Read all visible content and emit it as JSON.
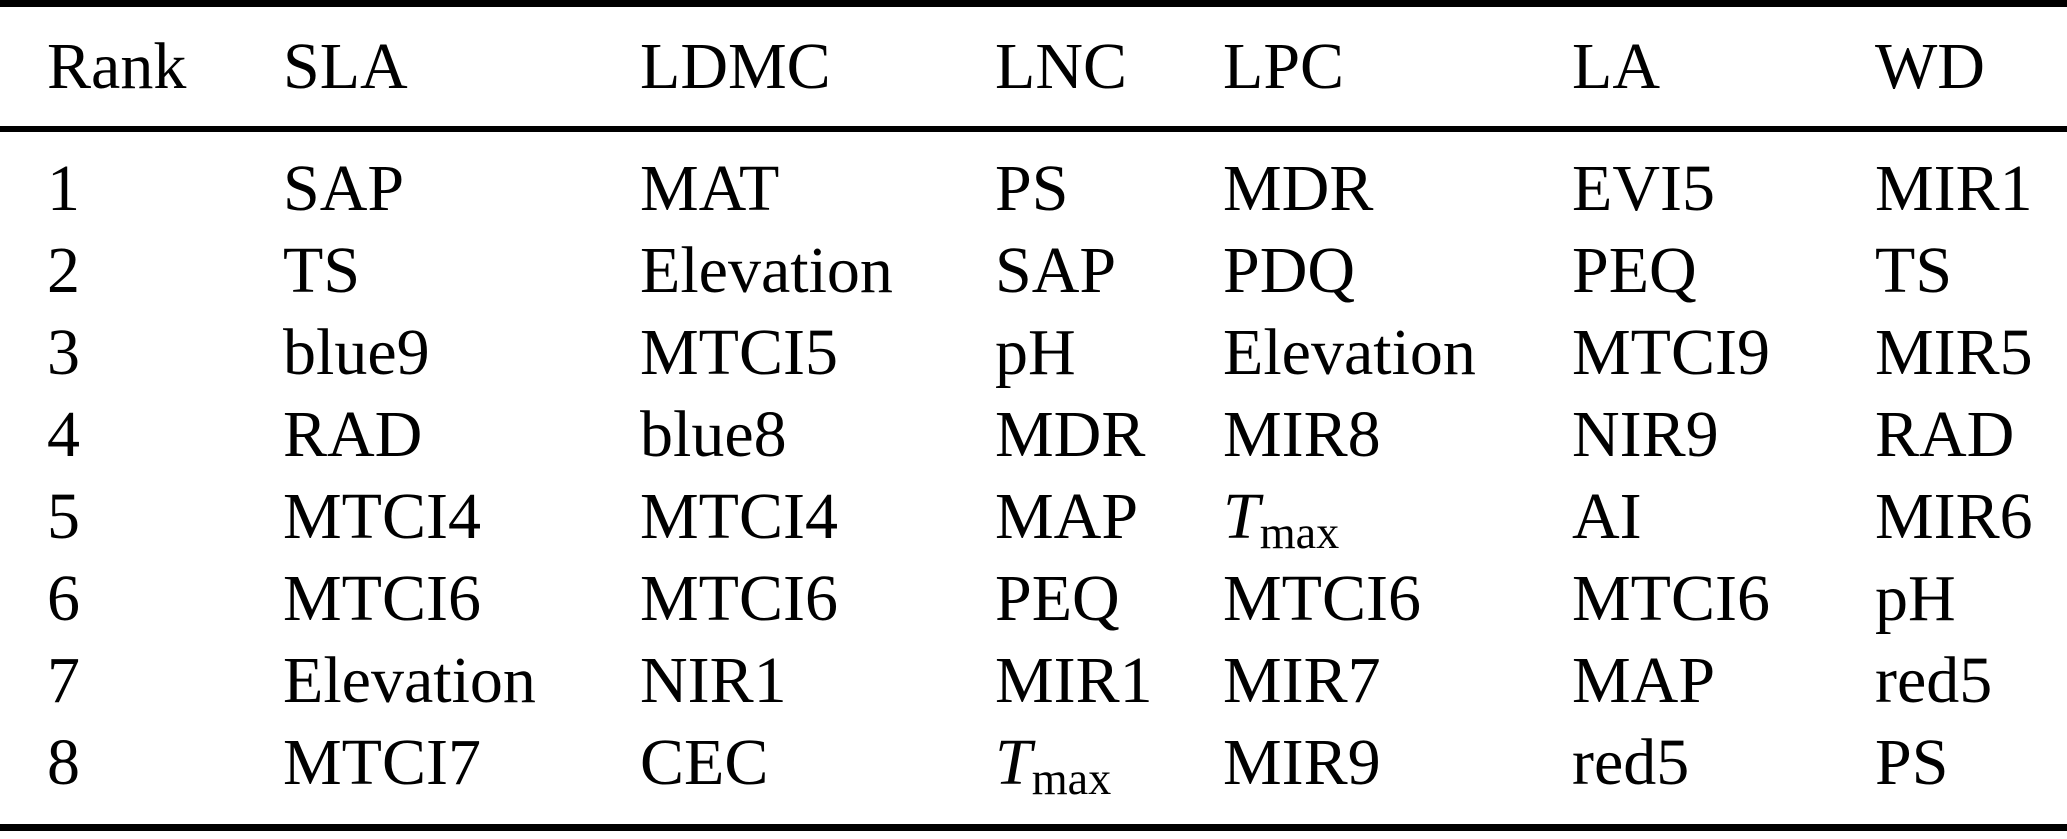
{
  "colors": {
    "text": "#000000",
    "background": "#ffffff",
    "rules": "#000000"
  },
  "table": {
    "columns": [
      "Rank",
      "SLA",
      "LDMC",
      "LNC",
      "LPC",
      "LA",
      "WD"
    ],
    "rows": [
      [
        "1",
        "SAP",
        "MAT",
        "PS",
        "MDR",
        "EVI5",
        "MIR1"
      ],
      [
        "2",
        "TS",
        "Elevation",
        "SAP",
        "PDQ",
        "PEQ",
        "TS"
      ],
      [
        "3",
        "blue9",
        "MTCI5",
        "pH",
        "Elevation",
        "MTCI9",
        "MIR5"
      ],
      [
        "4",
        "RAD",
        "blue8",
        "MDR",
        "MIR8",
        "NIR9",
        "RAD"
      ],
      [
        "5",
        "MTCI4",
        "MTCI4",
        "MAP",
        "T_max",
        "AI",
        "MIR6"
      ],
      [
        "6",
        "MTCI6",
        "MTCI6",
        "PEQ",
        "MTCI6",
        "MTCI6",
        "pH"
      ],
      [
        "7",
        "Elevation",
        "NIR1",
        "MIR1",
        "MIR7",
        "MAP",
        "red5"
      ],
      [
        "8",
        "MTCI7",
        "CEC",
        "T_max",
        "MIR9",
        "red5",
        "PS"
      ]
    ],
    "subscript_marker": "_"
  }
}
